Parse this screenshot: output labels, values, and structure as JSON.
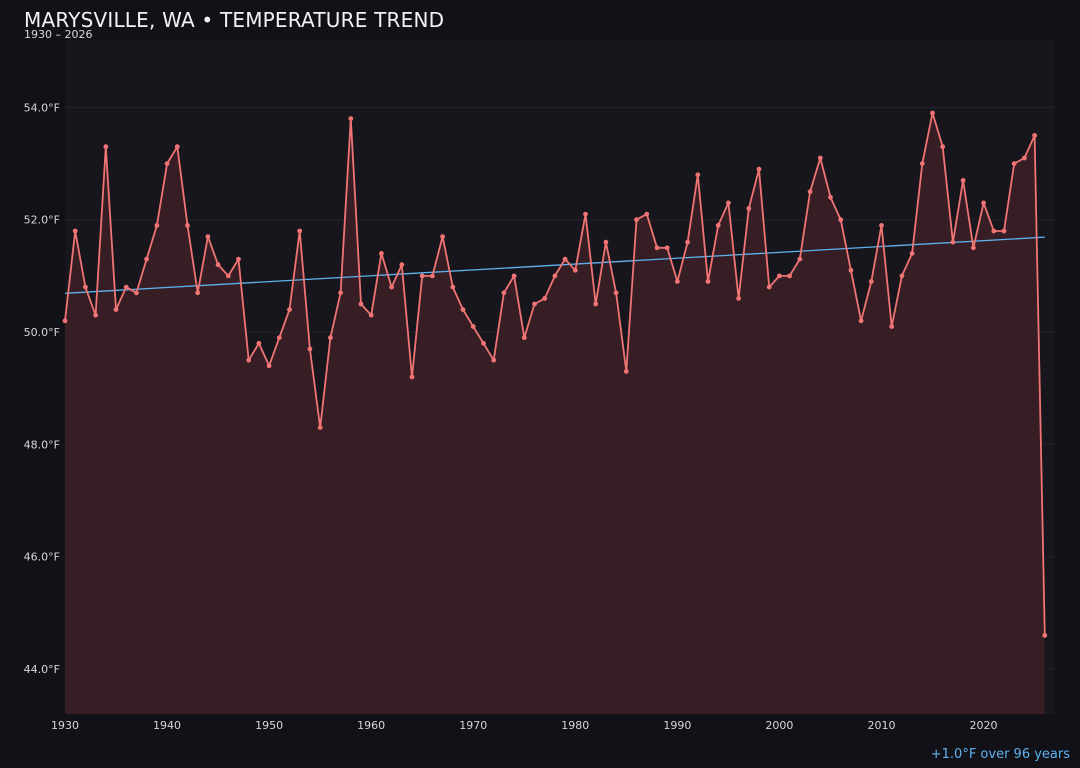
{
  "chart_data": {
    "type": "line",
    "title": "MARYSVILLE, WA • TEMPERATURE TREND",
    "subtitle": "1930 – 2026",
    "annotation": "+1.0°F over 96 years",
    "xlabel": "",
    "ylabel": "",
    "xlim": [
      1930,
      2027
    ],
    "ylim": [
      43.2,
      55.2
    ],
    "x_ticks": [
      1930,
      1940,
      1950,
      1960,
      1970,
      1980,
      1990,
      2000,
      2010,
      2020
    ],
    "y_ticks": [
      44,
      46,
      48,
      50,
      52,
      54
    ],
    "y_tick_labels": [
      "44.0°F",
      "46.0°F",
      "48.0°F",
      "50.0°F",
      "52.0°F",
      "54.0°F"
    ],
    "grid": true,
    "series": [
      {
        "color": "#f07474",
        "x": [
          1930,
          1931,
          1932,
          1933,
          1934,
          1935,
          1936,
          1937,
          1938,
          1939,
          1940,
          1941,
          1942,
          1943,
          1944,
          1945,
          1946,
          1947,
          1948,
          1949,
          1950,
          1951,
          1952,
          1953,
          1954,
          1955,
          1956,
          1957,
          1958,
          1959,
          1960,
          1961,
          1962,
          1963,
          1964,
          1965,
          1966,
          1967,
          1968,
          1969,
          1970,
          1971,
          1972,
          1973,
          1974,
          1975,
          1976,
          1977,
          1978,
          1979,
          1980,
          1981,
          1982,
          1983,
          1984,
          1985,
          1986,
          1987,
          1988,
          1989,
          1990,
          1991,
          1992,
          1993,
          1994,
          1995,
          1996,
          1997,
          1998,
          1999,
          2000,
          2001,
          2002,
          2003,
          2004,
          2005,
          2006,
          2007,
          2008,
          2009,
          2010,
          2011,
          2012,
          2013,
          2014,
          2015,
          2016,
          2017,
          2018,
          2019,
          2020,
          2021,
          2022,
          2023,
          2024,
          2025,
          2026
        ],
        "values": [
          50.2,
          51.8,
          50.8,
          50.3,
          53.3,
          50.4,
          50.8,
          50.7,
          51.3,
          51.9,
          53.0,
          53.3,
          51.9,
          50.7,
          51.7,
          51.2,
          51.0,
          51.3,
          49.5,
          49.8,
          49.4,
          49.9,
          50.4,
          51.8,
          49.7,
          48.3,
          49.9,
          50.7,
          53.8,
          50.5,
          50.3,
          51.4,
          50.8,
          51.2,
          49.2,
          51.0,
          51.0,
          51.7,
          50.8,
          50.4,
          50.1,
          49.8,
          49.5,
          50.7,
          51.0,
          49.9,
          50.5,
          50.6,
          51.0,
          51.3,
          51.1,
          52.1,
          50.5,
          51.6,
          50.7,
          49.3,
          52.0,
          52.1,
          51.5,
          51.5,
          50.9,
          51.6,
          52.8,
          50.9,
          51.9,
          52.3,
          50.6,
          52.2,
          52.9,
          50.8,
          51.0,
          51.0,
          51.3,
          52.5,
          53.1,
          52.4,
          52.0,
          51.1,
          50.2,
          50.9,
          51.9,
          50.1,
          51.0,
          51.4,
          53.0,
          53.9,
          53.3,
          51.6,
          52.7,
          51.5,
          52.3,
          51.8,
          51.8,
          53.0,
          53.1,
          53.5,
          44.6
        ]
      },
      {
        "color": "#5fb3ef",
        "x": [
          1930,
          2026
        ],
        "values": [
          50.69,
          51.69
        ]
      }
    ]
  }
}
